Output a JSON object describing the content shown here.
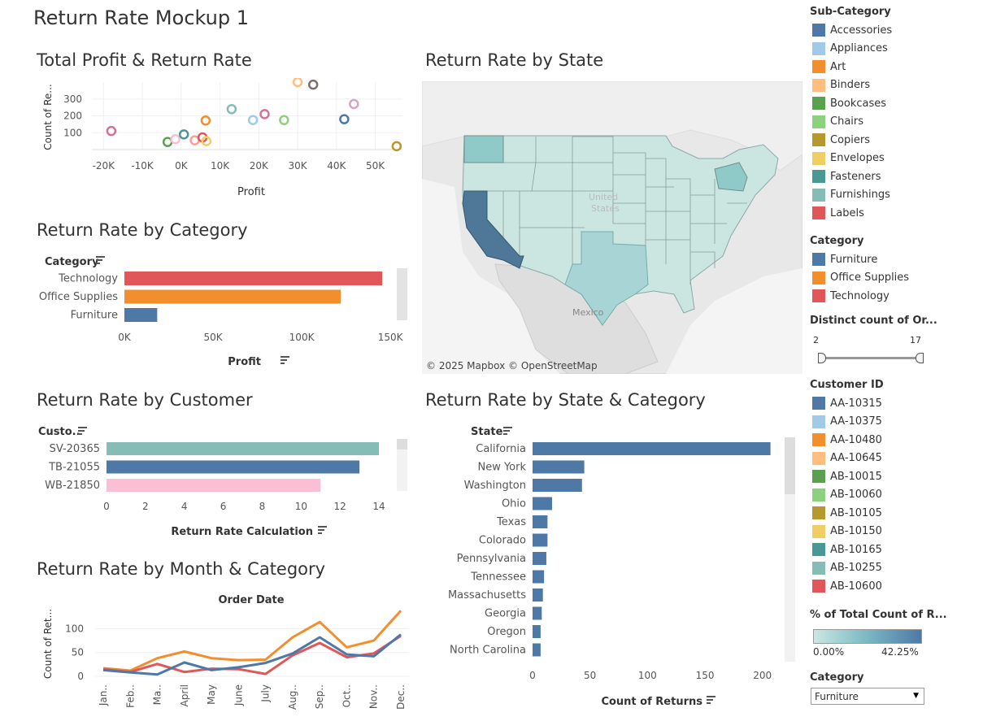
{
  "dashboard": {
    "title": "Return Rate Mockup 1"
  },
  "panels": {
    "profit_scatter": {
      "title": "Total Profit & Return Rate",
      "xlabel": "Profit",
      "ylabel": "Count of Re...",
      "xticks": [
        "-20K",
        "-10K",
        "0K",
        "10K",
        "20K",
        "30K",
        "40K",
        "50K"
      ],
      "yticks": [
        "100",
        "200",
        "300"
      ]
    },
    "category_bars": {
      "title": "Return Rate by Category",
      "header": "Category",
      "xlabel": "Profit",
      "xticks": [
        "0K",
        "50K",
        "100K",
        "150K"
      ]
    },
    "state_map": {
      "title": "Return Rate by State",
      "credit": "© 2025 Mapbox  © OpenStreetMap",
      "label_mexico": "Mexico",
      "label_us_1": "United",
      "label_us_2": "States"
    },
    "customer_bars": {
      "title": "Return Rate by Customer",
      "header": "Custo..",
      "xlabel": "Return Rate Calculation",
      "xticks": [
        "0",
        "2",
        "4",
        "6",
        "8",
        "10",
        "12",
        "14"
      ]
    },
    "state_category_bars": {
      "title": "Return Rate by State & Category",
      "header": "State",
      "xlabel": "Count of Returns",
      "xticks": [
        "0",
        "50",
        "100",
        "150",
        "200"
      ]
    },
    "month_lines": {
      "title": "Return Rate by Month & Category",
      "top_label": "Order Date",
      "ylabel": "Count of Ret...",
      "yticks": [
        "0",
        "50",
        "100"
      ]
    }
  },
  "sidebar": {
    "subcategory": {
      "header": "Sub-Category",
      "items": [
        {
          "label": "Accessories",
          "color": "#4e79a7"
        },
        {
          "label": "Appliances",
          "color": "#a0cbe8"
        },
        {
          "label": "Art",
          "color": "#f28e2b"
        },
        {
          "label": "Binders",
          "color": "#ffbe7d"
        },
        {
          "label": "Bookcases",
          "color": "#59a14f"
        },
        {
          "label": "Chairs",
          "color": "#8cd17d"
        },
        {
          "label": "Copiers",
          "color": "#b6992d"
        },
        {
          "label": "Envelopes",
          "color": "#f1ce63"
        },
        {
          "label": "Fasteners",
          "color": "#499894"
        },
        {
          "label": "Furnishings",
          "color": "#86bcb6"
        },
        {
          "label": "Labels",
          "color": "#e15759"
        }
      ]
    },
    "category": {
      "header": "Category",
      "items": [
        {
          "label": "Furniture",
          "color": "#4e79a7"
        },
        {
          "label": "Office Supplies",
          "color": "#f28e2b"
        },
        {
          "label": "Technology",
          "color": "#e15759"
        }
      ]
    },
    "distinct_count": {
      "header": "Distinct count of Or...",
      "min": "2",
      "max": "17"
    },
    "customer": {
      "header": "Customer ID",
      "items": [
        {
          "label": "AA-10315",
          "color": "#4e79a7"
        },
        {
          "label": "AA-10375",
          "color": "#a0cbe8"
        },
        {
          "label": "AA-10480",
          "color": "#f28e2b"
        },
        {
          "label": "AA-10645",
          "color": "#ffbe7d"
        },
        {
          "label": "AB-10015",
          "color": "#59a14f"
        },
        {
          "label": "AB-10060",
          "color": "#8cd17d"
        },
        {
          "label": "AB-10105",
          "color": "#b6992d"
        },
        {
          "label": "AB-10150",
          "color": "#f1ce63"
        },
        {
          "label": "AB-10165",
          "color": "#499894"
        },
        {
          "label": "AB-10255",
          "color": "#86bcb6"
        },
        {
          "label": "AB-10600",
          "color": "#e15759"
        }
      ]
    },
    "pct_total": {
      "header": "% of Total Count of R...",
      "min": "0.00%",
      "max": "42.25%"
    },
    "category_filter": {
      "header": "Category",
      "selected": "Furniture"
    }
  },
  "chart_data": [
    {
      "type": "scatter",
      "title": "Total Profit & Return Rate",
      "xlabel": "Profit",
      "ylabel": "Count of Re...",
      "xlim": [
        -23000,
        57000
      ],
      "ylim": [
        0,
        400
      ],
      "points": [
        {
          "x": -18000,
          "y": 110,
          "color": "#d37295"
        },
        {
          "x": -3500,
          "y": 45,
          "color": "#59a14f"
        },
        {
          "x": -1500,
          "y": 62,
          "color": "#fabfd2"
        },
        {
          "x": 700,
          "y": 90,
          "color": "#499894"
        },
        {
          "x": 3500,
          "y": 55,
          "color": "#ff9d9a"
        },
        {
          "x": 5500,
          "y": 72,
          "color": "#e15759"
        },
        {
          "x": 6500,
          "y": 50,
          "color": "#f1ce63"
        },
        {
          "x": 6300,
          "y": 172,
          "color": "#f28e2b"
        },
        {
          "x": 13000,
          "y": 240,
          "color": "#86bcb6"
        },
        {
          "x": 18500,
          "y": 175,
          "color": "#a0cbe8"
        },
        {
          "x": 21500,
          "y": 210,
          "color": "#d37295"
        },
        {
          "x": 26500,
          "y": 175,
          "color": "#8cd17d"
        },
        {
          "x": 30000,
          "y": 400,
          "color": "#ffbe7d"
        },
        {
          "x": 34000,
          "y": 385,
          "color": "#79706e"
        },
        {
          "x": 42000,
          "y": 180,
          "color": "#4e79a7"
        },
        {
          "x": 44500,
          "y": 270,
          "color": "#d4a6c8"
        },
        {
          "x": 55500,
          "y": 20,
          "color": "#b6992d"
        }
      ]
    },
    {
      "type": "bar",
      "title": "Return Rate by Category",
      "categories": [
        "Technology",
        "Office Supplies",
        "Furniture"
      ],
      "values": [
        145500,
        122000,
        18500
      ],
      "colors": [
        "#e15759",
        "#f28e2b",
        "#4e79a7"
      ],
      "xlabel": "Profit",
      "xlim": [
        0,
        155000
      ]
    },
    {
      "type": "bar",
      "title": "Return Rate by Customer",
      "categories": [
        "SV-20365",
        "TB-21055",
        "WB-21850"
      ],
      "values": [
        14,
        13,
        11
      ],
      "colors": [
        "#86bcb6",
        "#4e79a7",
        "#fabfd2"
      ],
      "xlabel": "Return Rate Calculation",
      "xlim": [
        0,
        15
      ]
    },
    {
      "type": "bar",
      "title": "Return Rate by State & Category",
      "categories": [
        "California",
        "New York",
        "Washington",
        "Ohio",
        "Texas",
        "Colorado",
        "Pennsylvania",
        "Tennessee",
        "Massachusetts",
        "Georgia",
        "Oregon",
        "North Carolina"
      ],
      "values": [
        207,
        45,
        43,
        17,
        13,
        13,
        12,
        10,
        9,
        8,
        7,
        7
      ],
      "xlabel": "Count of Returns",
      "xlim": [
        0,
        220
      ]
    },
    {
      "type": "line",
      "title": "Return Rate by Month & Category",
      "top_label": "Order Date",
      "categories": [
        "Jan..",
        "Feb..",
        "Ma..",
        "April",
        "May",
        "June",
        "July",
        "Aug..",
        "Sep..",
        "Oct..",
        "Nov..",
        "Dec.."
      ],
      "ylabel": "Count of Ret...",
      "ylim": [
        0,
        140
      ],
      "series": [
        {
          "name": "Office Supplies",
          "color": "#f28e2b",
          "values": [
            17,
            12,
            38,
            52,
            38,
            34,
            35,
            82,
            114,
            61,
            75,
            138
          ]
        },
        {
          "name": "Technology",
          "color": "#e15759",
          "values": [
            15,
            9,
            26,
            9,
            16,
            15,
            5,
            44,
            70,
            40,
            48,
            85
          ]
        },
        {
          "name": "Furniture",
          "color": "#4e79a7",
          "values": [
            13,
            8,
            4,
            29,
            13,
            19,
            28,
            48,
            82,
            46,
            42,
            88
          ]
        }
      ]
    }
  ],
  "map_data": {
    "scale_max_pct": 42.25,
    "highlighted_states": [
      {
        "name": "California",
        "shade": "dark"
      },
      {
        "name": "Washington",
        "shade": "medium"
      },
      {
        "name": "New York",
        "shade": "medium"
      },
      {
        "name": "Texas",
        "shade": "medium-light"
      }
    ]
  }
}
